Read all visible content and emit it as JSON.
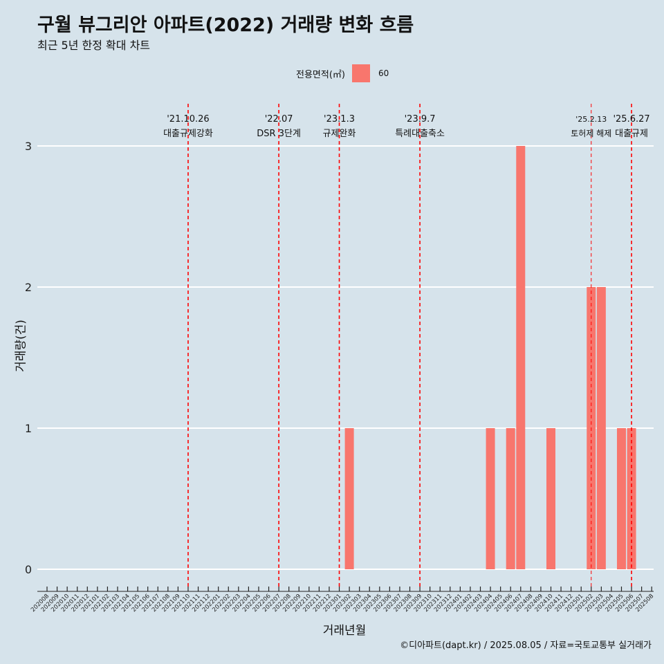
{
  "title": "구월 뷰그리안 아파트(2022) 거래량 변화 흐름",
  "subtitle": "최근 5년 한정 확대 차트",
  "caption": "©디아파트(dapt.kr) / 2025.08.05 / 자료=국토교통부 실거래가",
  "colors": {
    "background": "#d6e3eb",
    "bar": "#f8766d",
    "event_line": "#ff0000",
    "grid": "#ffffff"
  },
  "chart_data": {
    "type": "bar",
    "title": "구월 뷰그리안 아파트(2022) 거래량 변화 흐름",
    "subtitle": "최근 5년 한정 확대 차트",
    "xlabel": "거래년월",
    "ylabel": "거래량(건)",
    "ylim": [
      0,
      3
    ],
    "yticks": [
      "0",
      "1",
      "2",
      "3"
    ],
    "grid": true,
    "legend": {
      "title": "전용면적(㎡)",
      "position": "top",
      "entries": [
        "60"
      ]
    },
    "categories": [
      "202008",
      "202009",
      "202010",
      "202011",
      "202012",
      "202101",
      "202102",
      "202103",
      "202104",
      "202105",
      "202106",
      "202107",
      "202108",
      "202109",
      "202110",
      "202111",
      "202112",
      "202201",
      "202202",
      "202203",
      "202204",
      "202205",
      "202206",
      "202207",
      "202208",
      "202209",
      "202210",
      "202211",
      "202212",
      "202301",
      "202302",
      "202303",
      "202304",
      "202305",
      "202306",
      "202307",
      "202308",
      "202309",
      "202310",
      "202311",
      "202312",
      "202401",
      "202402",
      "202403",
      "202404",
      "202405",
      "202406",
      "202407",
      "202408",
      "202409",
      "202410",
      "202411",
      "202412",
      "202501",
      "202502",
      "202503",
      "202504",
      "202505",
      "202506",
      "202507",
      "202508"
    ],
    "series": [
      {
        "name": "60",
        "color": "#f8766d",
        "values": [
          0,
          0,
          0,
          0,
          0,
          0,
          0,
          0,
          0,
          0,
          0,
          0,
          0,
          0,
          0,
          0,
          0,
          0,
          0,
          0,
          0,
          0,
          0,
          0,
          0,
          0,
          0,
          0,
          0,
          0,
          1,
          0,
          0,
          0,
          0,
          0,
          0,
          0,
          0,
          0,
          0,
          0,
          0,
          0,
          1,
          0,
          1,
          3,
          0,
          0,
          1,
          0,
          0,
          0,
          2,
          2,
          0,
          1,
          1,
          0,
          0
        ]
      }
    ],
    "events": [
      {
        "date": "'21.10.26",
        "label": "대출규제강화",
        "month": "202110"
      },
      {
        "date": "'22.07",
        "label": "DSR 3단계",
        "month": "202207"
      },
      {
        "date": "'23.1.3",
        "label": "규제완화",
        "month": "202301"
      },
      {
        "date": "'23.9.7",
        "label": "특례대출축소",
        "month": "202309"
      },
      {
        "date": "'25.2.13",
        "label": "토허제 해제",
        "month": "202502"
      },
      {
        "date": "'25.6.27",
        "label": "대출규제",
        "month": "202506"
      }
    ]
  }
}
